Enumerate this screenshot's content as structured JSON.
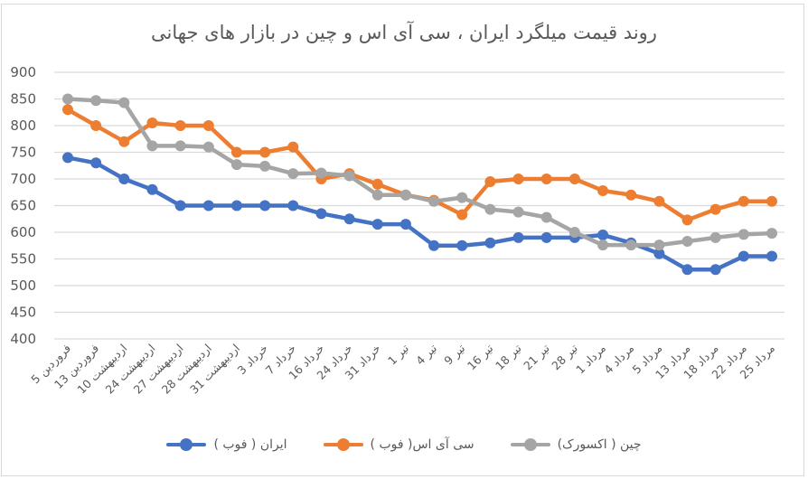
{
  "title": "روند قیمت میلگرد ایران ، سی آی اس و چین در بازار های جهانی",
  "legend": [
    {
      "label": "ایران ( فوب )",
      "color": "#4472C4"
    },
    {
      "label": "سی آی اس( فوب )",
      "color": "#ED7D31"
    },
    {
      "label": "چین ( اکسورک)",
      "color": "#A5A5A5"
    }
  ],
  "chart_data": {
    "type": "line",
    "title": "روند قیمت میلگرد ایران ، سی آی اس و چین در بازار های جهانی",
    "xlabel": "",
    "ylabel": "",
    "ylim": [
      400,
      900
    ],
    "yticks": [
      400,
      450,
      500,
      550,
      600,
      650,
      700,
      750,
      800,
      850,
      900
    ],
    "grid": true,
    "legend_position": "bottom",
    "categories": [
      "5 فروردین",
      "13 فروردین",
      "10 اردیبهشت",
      "24 اردیبهشت",
      "27 اردیبهشت",
      "28 اردیبهشت",
      "31 اردیبهشت",
      "3 خرداد",
      "7 خرداد",
      "16 خرداد",
      "24 خرداد",
      "31 خرداد",
      "1 تیر",
      "4 تیر",
      "9 تیر",
      "16 تیر",
      "18 تیر",
      "21 تیر",
      "28 تیر",
      "1 مرداد",
      "4 مرداد",
      "5 مرداد",
      "13 مرداد",
      "18 مرداد",
      "22 مرداد",
      "25 مرداد"
    ],
    "series": [
      {
        "name": "ایران ( فوب )",
        "color": "#4472C4",
        "values": [
          740,
          730,
          700,
          680,
          650,
          650,
          650,
          650,
          650,
          635,
          625,
          615,
          615,
          575,
          575,
          580,
          590,
          590,
          590,
          595,
          580,
          560,
          530,
          530,
          555,
          555
        ]
      },
      {
        "name": "سی آی اس( فوب )",
        "color": "#ED7D31",
        "values": [
          830,
          800,
          770,
          805,
          800,
          800,
          750,
          750,
          760,
          700,
          710,
          690,
          670,
          660,
          633,
          695,
          700,
          700,
          700,
          678,
          670,
          658,
          623,
          643,
          658,
          658
        ]
      },
      {
        "name": "چین ( اکسورک)",
        "color": "#A5A5A5",
        "values": [
          850,
          847,
          843,
          762,
          762,
          760,
          727,
          724,
          710,
          711,
          706,
          670,
          670,
          658,
          665,
          643,
          638,
          628,
          600,
          576,
          576,
          576,
          583,
          590,
          596,
          598
        ]
      }
    ]
  }
}
